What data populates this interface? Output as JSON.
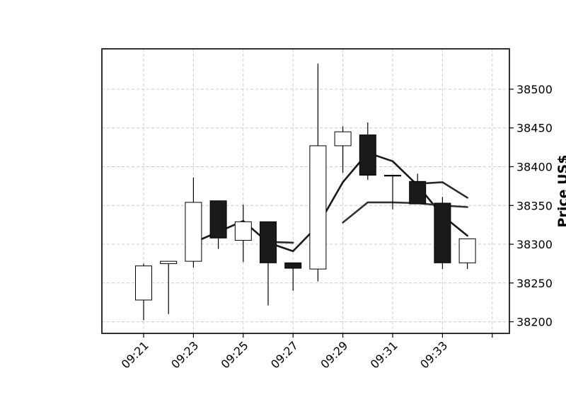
{
  "chart_data": {
    "type": "candlestick",
    "ylabel": "Price US$",
    "ylim": [
      38185,
      38552
    ],
    "grid": true,
    "x_tick_labels": [
      "09:21",
      "09:23",
      "09:25",
      "09:27",
      "09:29",
      "09:31",
      "09:33"
    ],
    "y_ticks": [
      38200,
      38250,
      38300,
      38350,
      38400,
      38450,
      38500
    ],
    "colors": {
      "up": "#ffffff",
      "down": "#1a1a1a",
      "edge": "#000000",
      "grid": "#cccccc"
    },
    "candles": [
      {
        "time": "09:21",
        "open": 38228,
        "high": 38275,
        "low": 38202,
        "close": 38272
      },
      {
        "time": "09:22",
        "open": 38275,
        "high": 38278,
        "low": 38210,
        "close": 38278
      },
      {
        "time": "09:23",
        "open": 38278,
        "high": 38386,
        "low": 38270,
        "close": 38354
      },
      {
        "time": "09:24",
        "open": 38356,
        "high": 38356,
        "low": 38294,
        "close": 38308
      },
      {
        "time": "09:25",
        "open": 38305,
        "high": 38351,
        "low": 38277,
        "close": 38329
      },
      {
        "time": "09:26",
        "open": 38329,
        "high": 38329,
        "low": 38221,
        "close": 38276
      },
      {
        "time": "09:27",
        "open": 38276,
        "high": 38276,
        "low": 38240,
        "close": 38269
      },
      {
        "time": "09:28",
        "open": 38268,
        "high": 38533,
        "low": 38252,
        "close": 38427
      },
      {
        "time": "09:29",
        "open": 38427,
        "high": 38452,
        "low": 38392,
        "close": 38445
      },
      {
        "time": "09:30",
        "open": 38441,
        "high": 38457,
        "low": 38383,
        "close": 38389
      },
      {
        "time": "09:31",
        "open": 38389,
        "high": 38389,
        "low": 38345,
        "close": 38388
      },
      {
        "time": "09:32",
        "open": 38381,
        "high": 38391,
        "low": 38352,
        "close": 38352
      },
      {
        "time": "09:33",
        "open": 38353,
        "high": 38361,
        "low": 38268,
        "close": 38276
      },
      {
        "time": "09:34",
        "open": 38276,
        "high": 38307,
        "low": 38268,
        "close": 38307
      }
    ],
    "series": [
      {
        "color": "#1a1a1a",
        "values": [
          null,
          null,
          38302,
          38316,
          38330,
          38302,
          38291,
          38324,
          38380,
          38418,
          38407,
          38376,
          38337,
          38311
        ]
      },
      {
        "color": "#2a2a2a",
        "values": [
          null,
          null,
          null,
          null,
          null,
          38303,
          38302,
          null,
          null,
          null,
          null,
          38378,
          38380,
          38360
        ]
      },
      {
        "color": "#333333",
        "values": [
          null,
          null,
          null,
          null,
          null,
          null,
          null,
          null,
          38328,
          38354,
          38354,
          38353,
          38350,
          38348
        ]
      }
    ]
  }
}
